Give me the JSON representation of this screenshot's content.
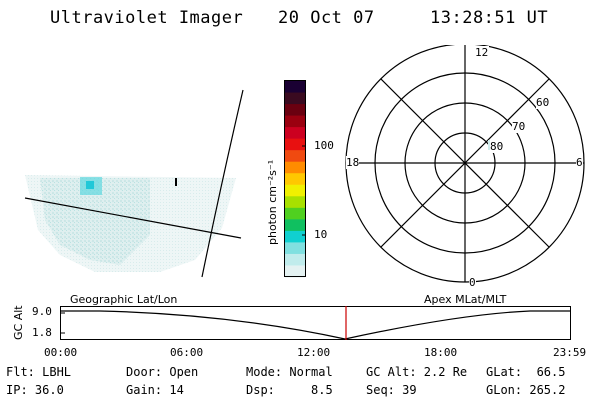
{
  "header": {
    "instrument": "Ultraviolet Imager",
    "date": "20 Oct 07",
    "time": "13:28:51 UT"
  },
  "colorbar": {
    "unit_label": "photon cm⁻²s⁻¹",
    "ticks": [
      "100",
      "10"
    ],
    "colors": [
      "#1a0033",
      "#3a0a20",
      "#6a0010",
      "#9a0010",
      "#cc0020",
      "#e81010",
      "#f04a10",
      "#ff8c00",
      "#ffc800",
      "#f0f000",
      "#a8e000",
      "#50d020",
      "#10c060",
      "#10d0d0",
      "#80e0e0",
      "#c0ecec",
      "#e4f2f2"
    ]
  },
  "polar": {
    "mlt_labels": {
      "top": "12",
      "right": "6",
      "bottom": "0",
      "left": "18"
    },
    "lat_labels": [
      "60",
      "70",
      "80"
    ]
  },
  "timeline": {
    "axis_label": "GC Alt",
    "y_ticks": [
      "9.0",
      "1.8"
    ],
    "left_caption": "Geographic Lat/Lon",
    "right_caption": "Apex MLat/MLT",
    "x_ticks": [
      "00:00",
      "06:00",
      "12:00",
      "18:00",
      "23:59"
    ],
    "marker_color": "#cc0000"
  },
  "info": {
    "flt": "Flt: LBHL",
    "ip": "IP: 36.0",
    "door": "Door: Open",
    "gain": "Gain: 14",
    "mode": "Mode: Normal",
    "dsp": "Dsp:     8.5",
    "gcalt": "GC Alt: 2.2 Re",
    "seq": "Seq: 39",
    "glat": "GLat:  66.5",
    "glon": "GLon: 265.2"
  }
}
